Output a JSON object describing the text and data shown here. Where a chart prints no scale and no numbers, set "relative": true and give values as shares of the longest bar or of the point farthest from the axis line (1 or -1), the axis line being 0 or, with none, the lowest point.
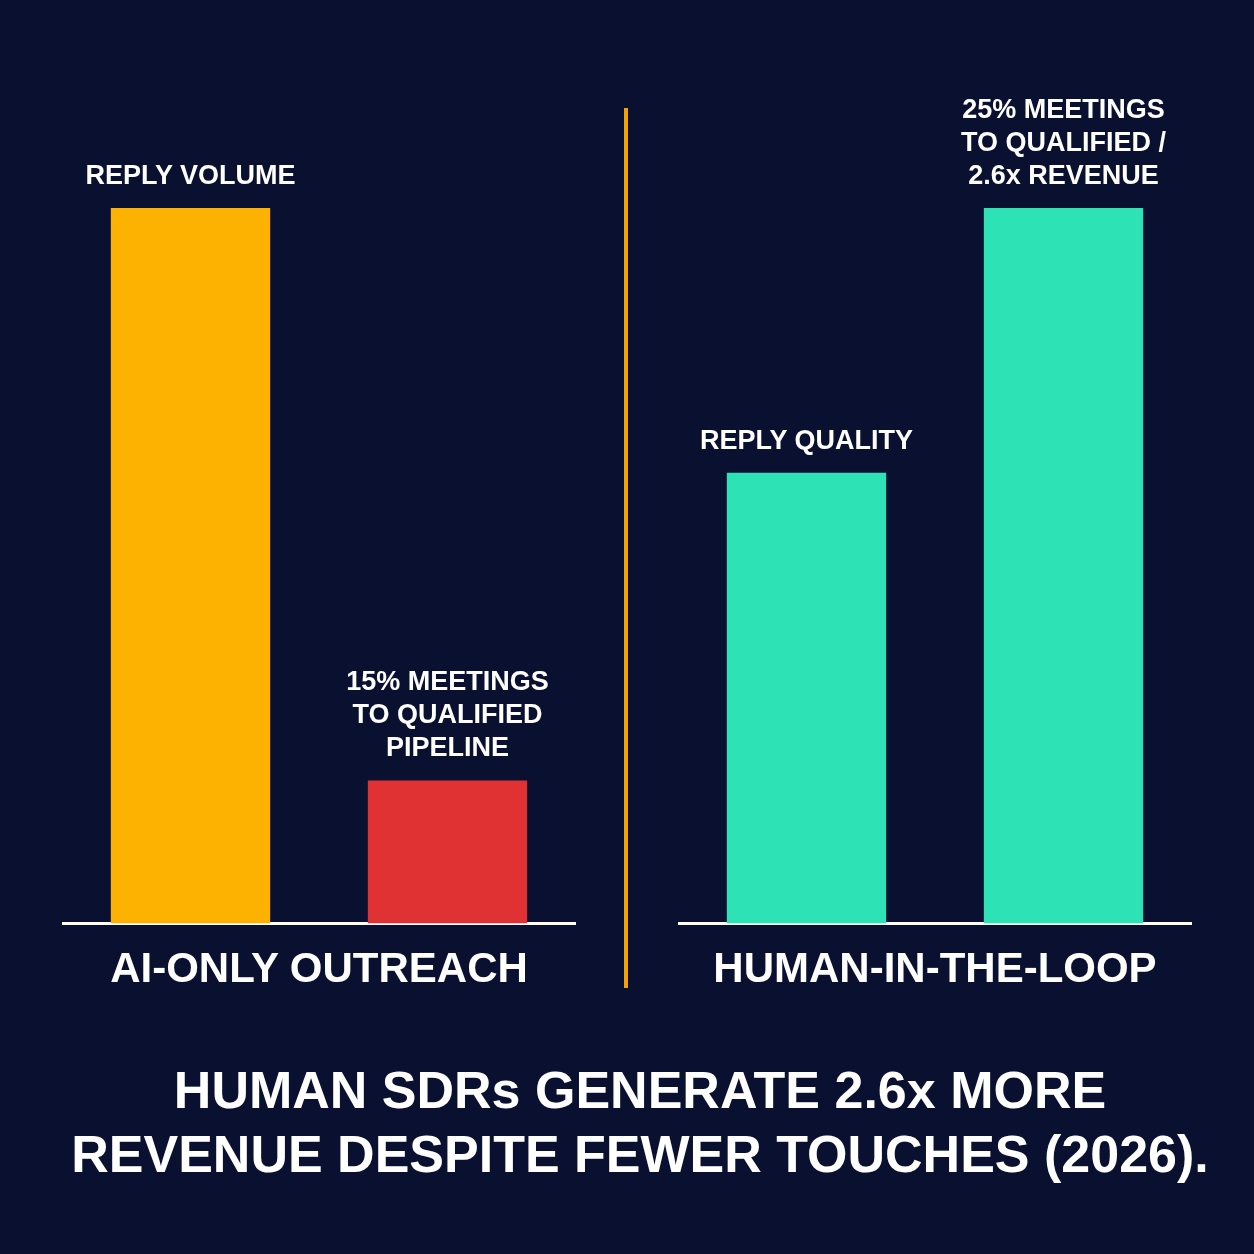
{
  "chart_data": [
    {
      "type": "bar",
      "relative": true,
      "xlabel": "AI-ONLY OUTREACH",
      "title": "HUMAN SDRs GENERATE 2.6x MORE REVENUE DESPITE FEWER TOUCHES (2026).",
      "categories": [
        "REPLY VOLUME",
        "15% MEETINGS TO QUALIFIED PIPELINE"
      ],
      "values": [
        1,
        0.2
      ],
      "colors": [
        "#fdb100",
        "#e03232"
      ],
      "legend": false,
      "grid": false
    },
    {
      "type": "bar",
      "relative": true,
      "xlabel": "HUMAN-IN-THE-LOOP",
      "categories": [
        "REPLY QUALITY",
        "25% MEETINGS TO QUALIFIED / 2.6x REVENUE"
      ],
      "values": [
        0.63,
        1
      ],
      "colors": [
        "#2de2b4",
        "#2de2b4"
      ],
      "legend": false,
      "grid": false
    }
  ]
}
